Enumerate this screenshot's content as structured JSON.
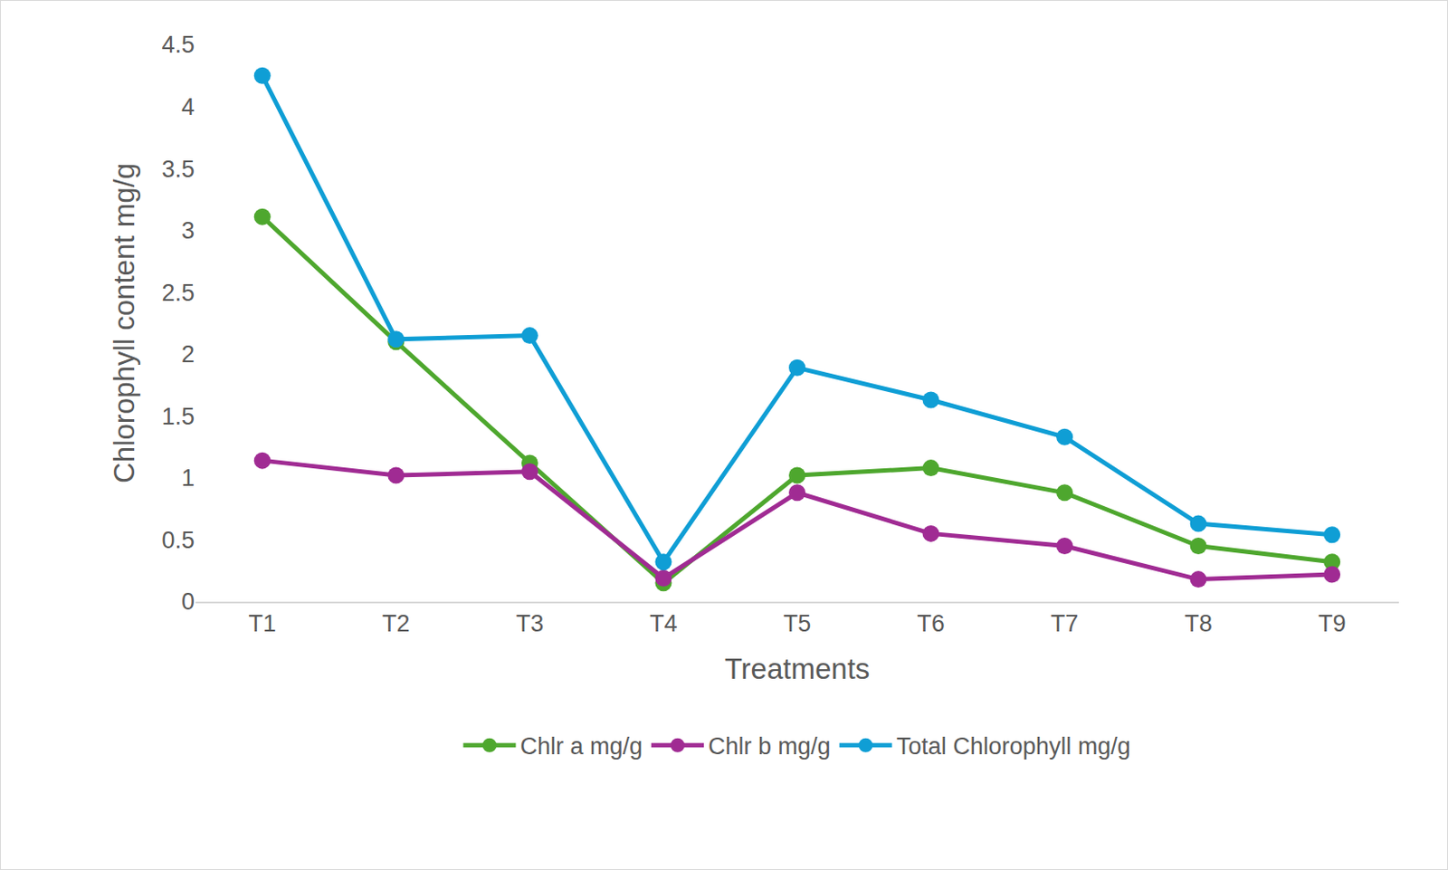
{
  "chart_data": {
    "type": "line",
    "x_label": "Treatments",
    "y_label": "Chlorophyll content mg/g",
    "categories": [
      "T1",
      "T2",
      "T3",
      "T4",
      "T5",
      "T6",
      "T7",
      "T8",
      "T9"
    ],
    "series": [
      {
        "name": "Chlr a mg/g",
        "color": "#4EA72E",
        "marker": "circle",
        "line_style": "solid",
        "values": [
          3.11,
          2.1,
          1.12,
          0.15,
          1.02,
          1.08,
          0.88,
          0.45,
          0.32
        ]
      },
      {
        "name": "Chlr b mg/g",
        "color": "#A02B93",
        "marker": "circle",
        "line_style": "solid",
        "values": [
          1.14,
          1.02,
          1.05,
          0.19,
          0.88,
          0.55,
          0.45,
          0.18,
          0.22
        ]
      },
      {
        "name": "Total Chlorophyll mg/g",
        "color": "#0F9ED5",
        "marker": "circle",
        "line_style": "solid",
        "values": [
          4.25,
          2.12,
          2.15,
          0.32,
          1.89,
          1.63,
          1.33,
          0.63,
          0.54
        ]
      }
    ],
    "ylim": [
      0,
      4.5
    ],
    "yticks": [
      0,
      0.5,
      1,
      1.5,
      2,
      2.5,
      3,
      3.5,
      4,
      4.5
    ],
    "grid": false,
    "legend": "bottom"
  }
}
